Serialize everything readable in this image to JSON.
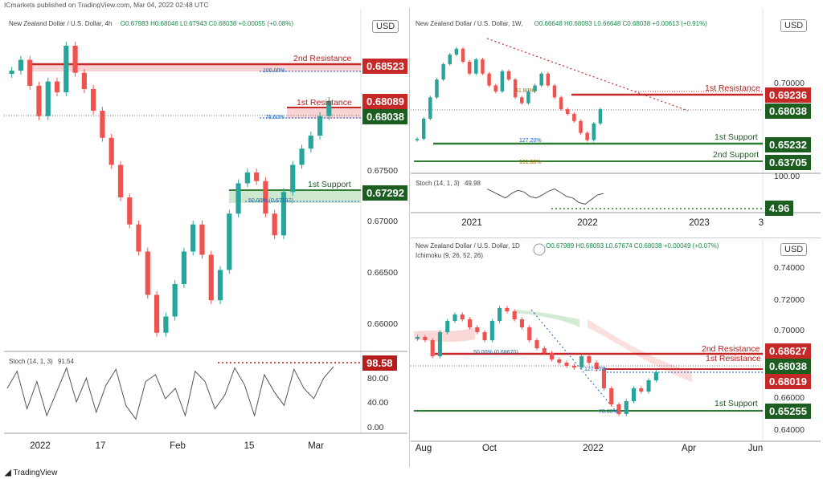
{
  "published_note": "ICmarkets published on TradingView.com, Mar 04, 2022 02:48 UTC",
  "brand": "TradingView",
  "colors": {
    "resistance": "#c62828",
    "support": "#2e7d32",
    "candle_up": "#26a69a",
    "candle_down": "#ef5350"
  },
  "panels": {
    "left": {
      "header": "New Zealand Dollar / U.S. Dollar, 4h",
      "ohlc": "O0.67983 H0.68046 L0.67943 C0.68038 +0.00055 (+0.08%)",
      "currency": "USD",
      "y_ticks": [
        "0.67500",
        "0.67000",
        "0.66500",
        "0.66000"
      ],
      "x_ticks": [
        "2022",
        "17",
        "Feb",
        "15",
        "Mar"
      ],
      "levels": {
        "second_resistance": {
          "label": "2nd Resistance",
          "value": "0.68523",
          "fib": "100.00%"
        },
        "first_resistance": {
          "label": "1st Resistance",
          "value": "0.68089",
          "fib": "78.60%"
        },
        "current_price": "0.68038",
        "first_support": {
          "label": "1st Support",
          "value": "0.67292",
          "fib": "50.00% (0.67197)"
        }
      },
      "stoch": {
        "label": "Stoch (14, 1, 3)",
        "value": "91.54",
        "tag": "98.58",
        "ticks": [
          "80.00",
          "40.00",
          "0.00"
        ]
      }
    },
    "top_right": {
      "header": "New Zealand Dollar / U.S. Dollar, 1W,",
      "ohlc": "O0.66648 H0.68093 L0.66648 C0.68038 +0.00613 (+0.91%)",
      "currency": "USD",
      "y_ticks": [
        "0.70000"
      ],
      "x_ticks": [
        "2021",
        "2022",
        "2023",
        "3"
      ],
      "levels": {
        "first_resistance": {
          "label": "1st Resistance",
          "value": "0.69236",
          "fib": "61.80%"
        },
        "current_price": "0.68038",
        "first_support": {
          "label": "1st Support",
          "value": "0.65232",
          "fib": "127.20%"
        },
        "second_support": {
          "label": "2nd Support",
          "value": "0.63705",
          "fib": "161.80%"
        }
      },
      "stoch": {
        "label": "Stoch (14, 1, 3)",
        "value": "49.98",
        "tag": "4.96",
        "ticks": [
          "100.00"
        ]
      }
    },
    "bottom_right": {
      "header": "New Zealand Dollar / U.S. Dollar, 1D",
      "ohlc": "O0.67989 H0.68093 L0.67674 C0.68038 +0.00049 (+0.07%)",
      "indicator": "Ichimoku (9, 26, 52, 26)",
      "currency": "USD",
      "y_ticks": [
        "0.74000",
        "0.72000",
        "0.70000",
        "0.66000",
        "0.64000"
      ],
      "x_ticks": [
        "Aug",
        "Oct",
        "2022",
        "Apr",
        "Jun"
      ],
      "levels": {
        "second_resistance": {
          "label": "2nd Resistance",
          "value": "0.68627",
          "fib": "50.00% (0.68670)"
        },
        "first_resistance": {
          "label": "1st Resistance",
          "value": "0.68019",
          "fib": "127.20%"
        },
        "current_price": "0.68038",
        "first_support": {
          "label": "1st Support",
          "value": "0.65255",
          "fib": "78.60%"
        }
      }
    }
  },
  "chart_data": [
    {
      "type": "candlestick",
      "panel": "left",
      "timeframe": "4h",
      "x_ticks": [
        "2022",
        "17",
        "Feb",
        "15",
        "Mar"
      ],
      "ylim": [
        0.6575,
        0.6875
      ],
      "close_path": [
        0.6832,
        0.6842,
        0.6818,
        0.679,
        0.6822,
        0.6812,
        0.6855,
        0.683,
        0.6815,
        0.6795,
        0.677,
        0.6745,
        0.6715,
        0.669,
        0.6665,
        0.6625,
        0.659,
        0.6605,
        0.6635,
        0.6665,
        0.669,
        0.6662,
        0.662,
        0.6648,
        0.67,
        0.6728,
        0.6738,
        0.673,
        0.67,
        0.668,
        0.672,
        0.6745,
        0.676,
        0.6772,
        0.679,
        0.6804
      ]
    },
    {
      "type": "candlestick",
      "panel": "top_right",
      "timeframe": "1W",
      "x_ticks": [
        "2021",
        "2022",
        "2023"
      ],
      "ylim": [
        0.63,
        0.745
      ],
      "close_path": [
        0.655,
        0.672,
        0.69,
        0.705,
        0.718,
        0.726,
        0.731,
        0.72,
        0.71,
        0.722,
        0.71,
        0.7,
        0.695,
        0.712,
        0.705,
        0.69,
        0.685,
        0.695,
        0.7,
        0.71,
        0.7,
        0.69,
        0.68,
        0.676,
        0.67,
        0.66,
        0.654,
        0.668,
        0.68
      ]
    },
    {
      "type": "candlestick",
      "panel": "bottom_right",
      "timeframe": "1D",
      "x_ticks": [
        "Aug",
        "Oct",
        "2022",
        "Apr",
        "Jun"
      ],
      "ylim": [
        0.638,
        0.748
      ],
      "close_path": [
        0.702,
        0.7,
        0.69,
        0.705,
        0.712,
        0.716,
        0.713,
        0.708,
        0.705,
        0.7,
        0.712,
        0.72,
        0.718,
        0.713,
        0.708,
        0.7,
        0.695,
        0.692,
        0.688,
        0.686,
        0.684,
        0.683,
        0.69,
        0.686,
        0.682,
        0.67,
        0.66,
        0.654,
        0.662,
        0.67,
        0.668,
        0.675,
        0.68
      ]
    }
  ]
}
